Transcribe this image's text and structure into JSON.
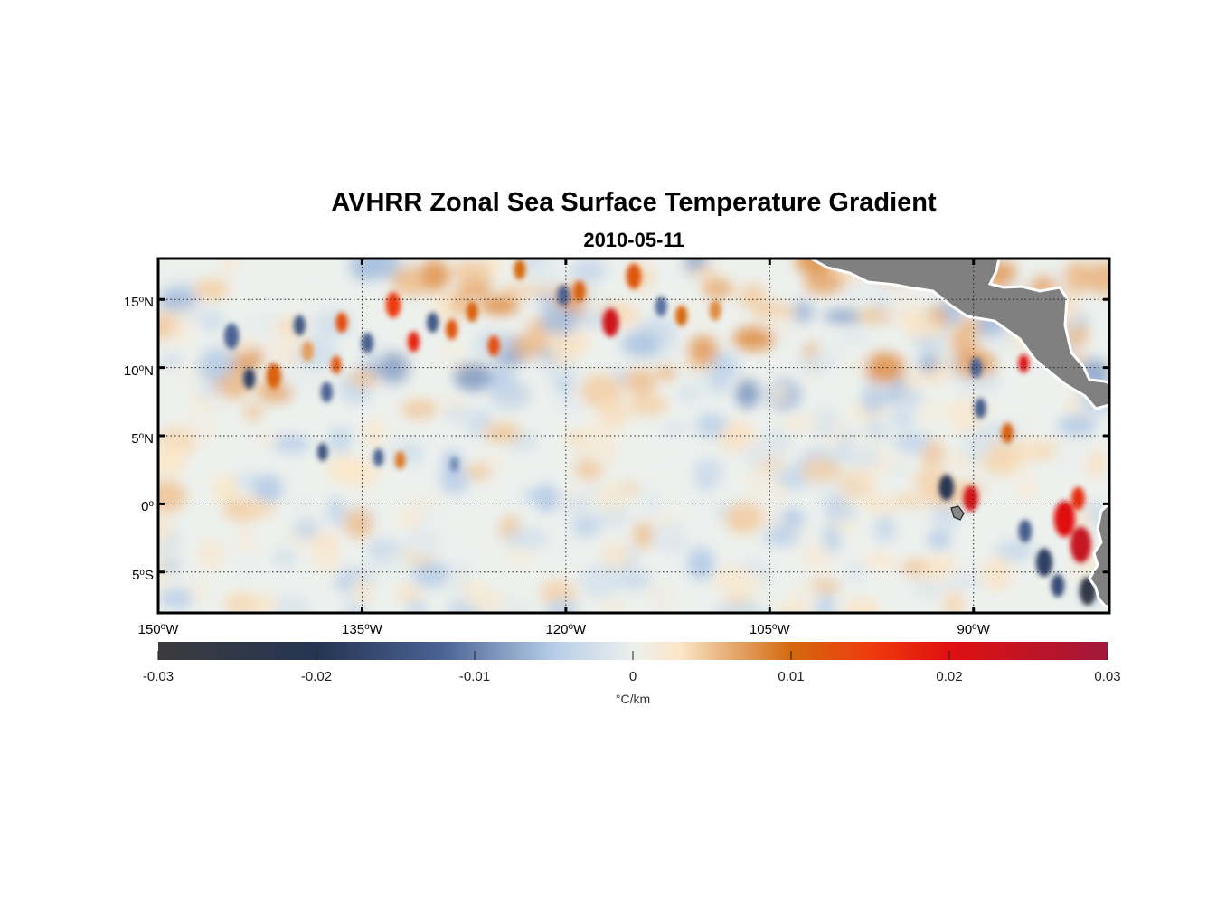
{
  "title": "AVHRR Zonal Sea Surface Temperature Gradient",
  "subtitle": "2010-05-11",
  "map": {
    "lon_range": [
      -150,
      -80
    ],
    "lat_range": [
      -8,
      18
    ],
    "land_color": "#808080",
    "lat_ticks": [
      {
        "value": 15,
        "deg": "15",
        "sup": "o",
        "hemi": "N"
      },
      {
        "value": 10,
        "deg": "10",
        "sup": "o",
        "hemi": "N"
      },
      {
        "value": 5,
        "deg": "5",
        "sup": "o",
        "hemi": "N"
      },
      {
        "value": 0,
        "deg": "0",
        "sup": "o",
        "hemi": ""
      },
      {
        "value": -5,
        "deg": "5",
        "sup": "o",
        "hemi": "S"
      }
    ],
    "lon_ticks": [
      {
        "value": -150,
        "deg": "150",
        "sup": "o",
        "hemi": "W"
      },
      {
        "value": -135,
        "deg": "135",
        "sup": "o",
        "hemi": "W"
      },
      {
        "value": -120,
        "deg": "120",
        "sup": "o",
        "hemi": "W"
      },
      {
        "value": -105,
        "deg": "105",
        "sup": "o",
        "hemi": "W"
      },
      {
        "value": -90,
        "deg": "90",
        "sup": "o",
        "hemi": "W"
      }
    ],
    "features": [
      {
        "lon": -144.6,
        "lat": 12.3,
        "v": -0.012,
        "r": 1.0
      },
      {
        "lon": -143.3,
        "lat": 9.2,
        "v": -0.018,
        "r": 0.8
      },
      {
        "lon": -141.5,
        "lat": 9.4,
        "v": 0.011,
        "r": 1.0
      },
      {
        "lon": -139.6,
        "lat": 13.1,
        "v": -0.014,
        "r": 0.8
      },
      {
        "lon": -139.0,
        "lat": 11.2,
        "v": 0.007,
        "r": 0.8
      },
      {
        "lon": -137.6,
        "lat": 8.2,
        "v": -0.012,
        "r": 0.8
      },
      {
        "lon": -136.9,
        "lat": 10.2,
        "v": 0.012,
        "r": 0.7
      },
      {
        "lon": -136.5,
        "lat": 13.3,
        "v": 0.013,
        "r": 0.8
      },
      {
        "lon": -134.6,
        "lat": 11.8,
        "v": -0.013,
        "r": 0.8
      },
      {
        "lon": -132.7,
        "lat": 14.6,
        "v": 0.015,
        "r": 1.0
      },
      {
        "lon": -131.2,
        "lat": 11.9,
        "v": 0.018,
        "r": 0.8
      },
      {
        "lon": -129.8,
        "lat": 13.3,
        "v": -0.014,
        "r": 0.8
      },
      {
        "lon": -128.4,
        "lat": 12.8,
        "v": 0.012,
        "r": 0.8
      },
      {
        "lon": -126.9,
        "lat": 14.1,
        "v": 0.011,
        "r": 0.8
      },
      {
        "lon": -125.3,
        "lat": 11.6,
        "v": 0.013,
        "r": 0.8
      },
      {
        "lon": -123.4,
        "lat": 17.2,
        "v": 0.01,
        "r": 0.8
      },
      {
        "lon": -120.2,
        "lat": 15.3,
        "v": -0.012,
        "r": 0.8
      },
      {
        "lon": -119.0,
        "lat": 15.6,
        "v": 0.011,
        "r": 0.8
      },
      {
        "lon": -116.7,
        "lat": 13.3,
        "v": 0.023,
        "r": 1.1
      },
      {
        "lon": -115.0,
        "lat": 16.7,
        "v": 0.012,
        "r": 1.0
      },
      {
        "lon": -113.0,
        "lat": 14.5,
        "v": -0.011,
        "r": 0.8
      },
      {
        "lon": -111.5,
        "lat": 13.8,
        "v": 0.01,
        "r": 0.8
      },
      {
        "lon": -109.0,
        "lat": 14.2,
        "v": 0.008,
        "r": 0.8
      },
      {
        "lon": -137.9,
        "lat": 3.8,
        "v": -0.015,
        "r": 0.7
      },
      {
        "lon": -133.8,
        "lat": 3.4,
        "v": -0.012,
        "r": 0.7
      },
      {
        "lon": -132.2,
        "lat": 3.2,
        "v": 0.009,
        "r": 0.7
      },
      {
        "lon": -128.2,
        "lat": 2.9,
        "v": -0.009,
        "r": 0.6
      },
      {
        "lon": -92.0,
        "lat": 1.2,
        "v": -0.02,
        "r": 1.0
      },
      {
        "lon": -90.2,
        "lat": 0.4,
        "v": 0.022,
        "r": 1.0
      },
      {
        "lon": -89.5,
        "lat": 7.0,
        "v": -0.013,
        "r": 0.8
      },
      {
        "lon": -89.8,
        "lat": 10.0,
        "v": -0.012,
        "r": 0.8
      },
      {
        "lon": -87.5,
        "lat": 5.2,
        "v": 0.011,
        "r": 0.8
      },
      {
        "lon": -86.3,
        "lat": 10.3,
        "v": 0.02,
        "r": 0.7
      },
      {
        "lon": -83.3,
        "lat": -1.1,
        "v": 0.02,
        "r": 1.4
      },
      {
        "lon": -82.1,
        "lat": -3.0,
        "v": 0.024,
        "r": 1.4
      },
      {
        "lon": -82.3,
        "lat": 0.4,
        "v": 0.017,
        "r": 0.9
      },
      {
        "lon": -84.8,
        "lat": -4.3,
        "v": -0.018,
        "r": 1.1
      },
      {
        "lon": -81.6,
        "lat": -6.4,
        "v": -0.026,
        "r": 1.1
      },
      {
        "lon": -86.2,
        "lat": -2.0,
        "v": -0.013,
        "r": 0.9
      },
      {
        "lon": -83.8,
        "lat": -6.0,
        "v": -0.016,
        "r": 0.9
      }
    ]
  },
  "colorbar": {
    "min": -0.03,
    "max": 0.03,
    "ticks": [
      "-0.03",
      "-0.02",
      "-0.01",
      "0",
      "0.01",
      "0.02",
      "0.03"
    ],
    "tick_values": [
      -0.03,
      -0.02,
      -0.01,
      0,
      0.01,
      0.02,
      0.03
    ],
    "unit_label": "°C/km",
    "stops": [
      {
        "v": -0.03,
        "color": "#3b3b3e"
      },
      {
        "v": -0.02,
        "color": "#253553"
      },
      {
        "v": -0.012,
        "color": "#4b6394"
      },
      {
        "v": -0.005,
        "color": "#b6cde8"
      },
      {
        "v": 0,
        "color": "#ecf0ed"
      },
      {
        "v": 0.003,
        "color": "#fbe6c8"
      },
      {
        "v": 0.006,
        "color": "#e7ae77"
      },
      {
        "v": 0.01,
        "color": "#d4690f"
      },
      {
        "v": 0.015,
        "color": "#ee3b0e"
      },
      {
        "v": 0.02,
        "color": "#e01010"
      },
      {
        "v": 0.03,
        "color": "#a0183a"
      }
    ]
  }
}
